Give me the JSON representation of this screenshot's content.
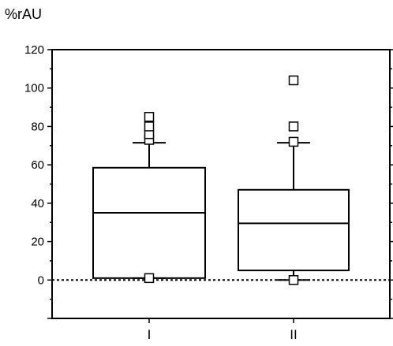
{
  "chart_data": {
    "type": "box",
    "ylabel": "%rAU",
    "ylim": [
      -20,
      120
    ],
    "yticks": [
      0,
      20,
      40,
      60,
      80,
      100,
      120
    ],
    "categories": [
      "I",
      "II"
    ],
    "zero_line": "dotted",
    "boxes": [
      {
        "category": "I",
        "q1": 1,
        "median": 35,
        "q3": 58.5,
        "whisker_low": 1,
        "whisker_high": 71.5,
        "outliers": [
          1,
          73,
          76,
          80,
          85
        ]
      },
      {
        "category": "II",
        "q1": 5,
        "median": 29.5,
        "q3": 47,
        "whisker_low": 0,
        "whisker_high": 71.5,
        "outliers": [
          0,
          72,
          80,
          104
        ]
      }
    ]
  }
}
